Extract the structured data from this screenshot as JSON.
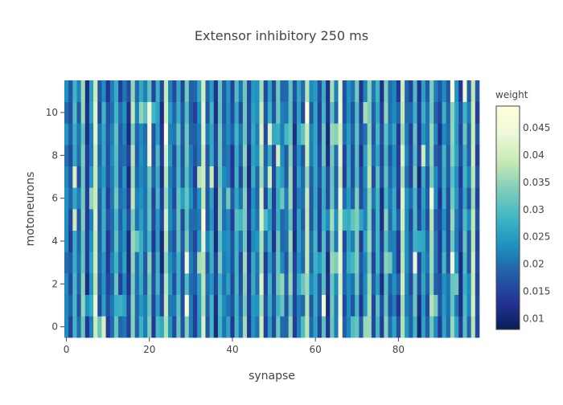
{
  "chart_data": {
    "type": "heatmap",
    "title": "Extensor inhibitory 250 ms",
    "xlabel": "synapse",
    "ylabel": "motoneurons",
    "x_count": 100,
    "y_count": 12,
    "xlim": [
      -0.5,
      99.5
    ],
    "ylim": [
      -0.5,
      11.5
    ],
    "x_ticks": [
      0,
      20,
      40,
      60,
      80
    ],
    "y_ticks": [
      0,
      2,
      4,
      6,
      8,
      10
    ],
    "colorbar": {
      "title": "weight",
      "range": [
        0.008,
        0.049
      ],
      "ticks": [
        0.01,
        0.015,
        0.02,
        0.025,
        0.03,
        0.035,
        0.04,
        0.045
      ],
      "tick_labels": [
        "0.01",
        "0.015",
        "0.02",
        "0.025",
        "0.03",
        "0.035",
        "0.04",
        "0.045"
      ],
      "colorscale": [
        [
          0.0,
          "#081d58"
        ],
        [
          0.125,
          "#253494"
        ],
        [
          0.25,
          "#225ea8"
        ],
        [
          0.375,
          "#1d91c0"
        ],
        [
          0.5,
          "#41b6c4"
        ],
        [
          0.625,
          "#7fcdbb"
        ],
        [
          0.75,
          "#c7e9b4"
        ],
        [
          0.875,
          "#edf8d9"
        ],
        [
          1.0,
          "#ffffd9"
        ]
      ]
    },
    "column_base_weights": [
      0.022,
      0.016,
      0.028,
      0.019,
      0.034,
      0.013,
      0.024,
      0.041,
      0.018,
      0.026,
      0.015,
      0.021,
      0.03,
      0.017,
      0.023,
      0.014,
      0.036,
      0.02,
      0.025,
      0.019,
      0.032,
      0.016,
      0.027,
      0.013,
      0.038,
      0.022,
      0.018,
      0.029,
      0.015,
      0.033,
      0.021,
      0.017,
      0.024,
      0.04,
      0.019,
      0.026,
      0.014,
      0.031,
      0.02,
      0.023,
      0.016,
      0.028,
      0.018,
      0.035,
      0.013,
      0.025,
      0.021,
      0.039,
      0.017,
      0.027,
      0.015,
      0.03,
      0.022,
      0.019,
      0.033,
      0.014,
      0.024,
      0.018,
      0.037,
      0.02,
      0.026,
      0.016,
      0.029,
      0.013,
      0.034,
      0.021,
      0.042,
      0.017,
      0.025,
      0.019,
      0.031,
      0.015,
      0.023,
      0.036,
      0.018,
      0.028,
      0.014,
      0.032,
      0.02,
      0.024,
      0.016,
      0.039,
      0.022,
      0.017,
      0.03,
      0.013,
      0.027,
      0.019,
      0.035,
      0.021,
      0.015,
      0.026,
      0.018,
      0.033,
      0.023,
      0.014,
      0.029,
      0.02,
      0.038,
      0.017
    ],
    "value_generation_note": "cell weights per motoneuron row vary around each synapse column base weight"
  }
}
